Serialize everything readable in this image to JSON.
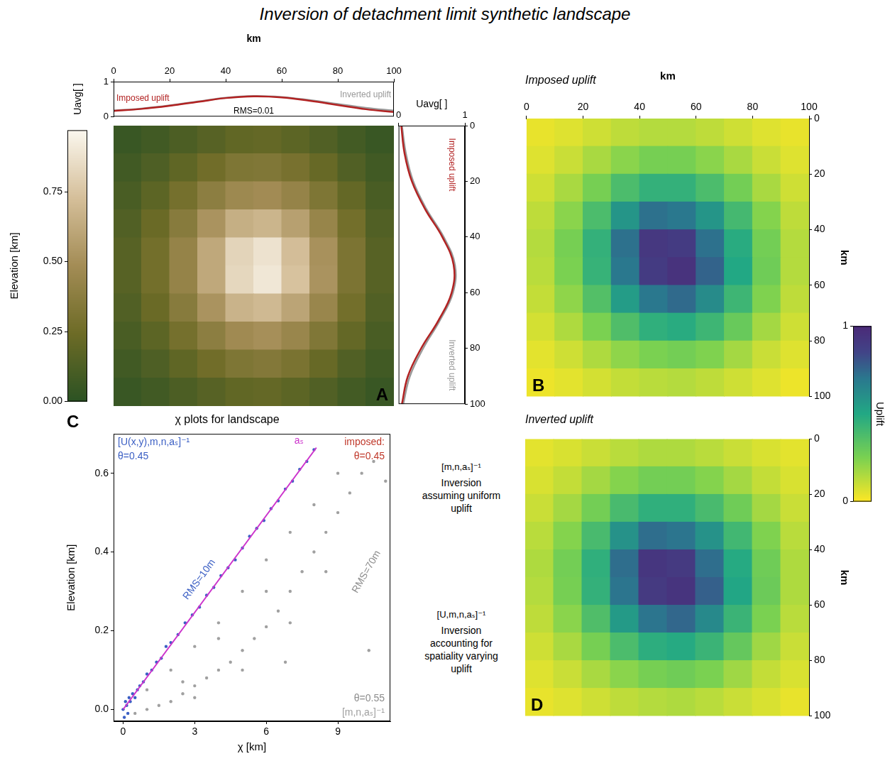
{
  "title": "Inversion of detachment limit synthetic landscape",
  "chart_data": [
    {
      "type": "heatmap",
      "panel_label": "A",
      "x": [
        5,
        15,
        25,
        35,
        45,
        55,
        65,
        75,
        85,
        95
      ],
      "y": [
        5,
        15,
        25,
        35,
        45,
        55,
        65,
        75,
        85,
        95
      ],
      "z": [
        [
          0.05,
          0.08,
          0.12,
          0.16,
          0.2,
          0.21,
          0.18,
          0.14,
          0.09,
          0.05
        ],
        [
          0.08,
          0.13,
          0.19,
          0.26,
          0.32,
          0.33,
          0.29,
          0.22,
          0.14,
          0.08
        ],
        [
          0.11,
          0.18,
          0.28,
          0.38,
          0.46,
          0.48,
          0.42,
          0.32,
          0.21,
          0.11
        ],
        [
          0.14,
          0.23,
          0.36,
          0.52,
          0.65,
          0.68,
          0.58,
          0.43,
          0.27,
          0.14
        ],
        [
          0.16,
          0.27,
          0.42,
          0.62,
          0.82,
          0.88,
          0.72,
          0.51,
          0.31,
          0.16
        ],
        [
          0.16,
          0.27,
          0.42,
          0.62,
          0.83,
          0.9,
          0.74,
          0.52,
          0.31,
          0.16
        ],
        [
          0.14,
          0.23,
          0.36,
          0.52,
          0.67,
          0.7,
          0.6,
          0.44,
          0.27,
          0.14
        ],
        [
          0.11,
          0.18,
          0.28,
          0.38,
          0.47,
          0.5,
          0.44,
          0.33,
          0.21,
          0.11
        ],
        [
          0.08,
          0.13,
          0.19,
          0.26,
          0.32,
          0.34,
          0.3,
          0.22,
          0.14,
          0.08
        ],
        [
          0.05,
          0.08,
          0.12,
          0.16,
          0.2,
          0.21,
          0.18,
          0.14,
          0.09,
          0.05
        ]
      ],
      "xlim": [
        0,
        100
      ],
      "ylim": [
        100,
        0
      ],
      "tick_labels": false,
      "grid": false,
      "colorbar": {
        "title": "Elevation [km]",
        "range": [
          0,
          0.97
        ],
        "ticks": [
          {
            "value": 0,
            "label": "0.00"
          },
          {
            "value": 0.25,
            "label": "0.25"
          },
          {
            "value": 0.5,
            "label": "0.50"
          },
          {
            "value": 0.75,
            "label": "0.75"
          }
        ]
      }
    },
    {
      "type": "line",
      "x": [
        0,
        10,
        20,
        30,
        40,
        50,
        60,
        70,
        80,
        90,
        100
      ],
      "series": [
        {
          "name": "Imposed uplift",
          "color": "#b22222",
          "values": [
            0.16,
            0.22,
            0.31,
            0.42,
            0.53,
            0.58,
            0.55,
            0.45,
            0.33,
            0.21,
            0.13
          ]
        },
        {
          "name": "Inverted uplift",
          "color": "#999999",
          "values": [
            0.17,
            0.23,
            0.32,
            0.43,
            0.54,
            0.59,
            0.56,
            0.47,
            0.36,
            0.25,
            0.17
          ]
        }
      ],
      "xlim": [
        0,
        100
      ],
      "xticks": [
        0,
        20,
        40,
        60,
        80,
        100
      ],
      "ylim": [
        0,
        1
      ],
      "yticks": [
        0,
        1
      ],
      "xlabel": "km",
      "ylabel": "Uavg[ ]",
      "annotations": [
        {
          "text": "RMS=0.01",
          "color": "#000000"
        }
      ],
      "grid": false
    },
    {
      "type": "line",
      "y": [
        0,
        10,
        20,
        30,
        40,
        50,
        60,
        70,
        80,
        90,
        100
      ],
      "series": [
        {
          "name": "Imposed uplift",
          "color": "#b22222",
          "values": [
            0.04,
            0.09,
            0.2,
            0.4,
            0.66,
            0.83,
            0.8,
            0.6,
            0.34,
            0.14,
            0.05
          ]
        },
        {
          "name": "Inverted uplift",
          "color": "#999999",
          "values": [
            0.05,
            0.11,
            0.22,
            0.42,
            0.68,
            0.85,
            0.82,
            0.62,
            0.37,
            0.17,
            0.07
          ]
        }
      ],
      "xlim": [
        0,
        1
      ],
      "xticks": [
        0,
        1
      ],
      "ylim": [
        100,
        0
      ],
      "yticks": [
        0,
        20,
        40,
        60,
        80,
        100
      ],
      "xlabel": "Uavg[ ]",
      "grid": false
    },
    {
      "type": "scatter",
      "panel_label": "C",
      "title": "χ plots for landscape",
      "xlabel": "χ [km]",
      "ylabel": "Elevation [km]",
      "xlim": [
        -0.4,
        11.2
      ],
      "ylim": [
        -0.03,
        0.7
      ],
      "xticks": [
        0,
        3,
        6,
        9
      ],
      "yticks": [
        {
          "value": 0,
          "label": "0.0"
        },
        {
          "value": 0.2,
          "label": "0.2"
        },
        {
          "value": 0.4,
          "label": "0.4"
        },
        {
          "value": 0.6,
          "label": "0.6"
        }
      ],
      "grid": false,
      "series": [
        {
          "name": "[U(x,y),m,n,aₛ]⁻¹",
          "color": "#3b5fc4",
          "marker": "circle",
          "x": [
            0,
            0.05,
            0.1,
            0.15,
            0.2,
            0.25,
            0.3,
            0.4,
            0.5,
            0.6,
            0.7,
            0.85,
            1.0,
            1.2,
            1.4,
            1.6,
            1.8,
            2.0,
            2.3,
            2.6,
            2.9,
            3.2,
            3.5,
            3.8,
            4.1,
            4.4,
            4.7,
            5.0,
            5.3,
            5.6,
            5.9,
            6.2,
            6.5,
            6.8,
            7.1,
            7.4,
            7.7,
            8.0
          ],
          "values": [
            0.0,
            -0.02,
            0.02,
            0.01,
            -0.01,
            0.03,
            0.02,
            0.04,
            0.03,
            0.05,
            0.06,
            0.07,
            0.09,
            0.1,
            0.12,
            0.13,
            0.16,
            0.17,
            0.19,
            0.22,
            0.24,
            0.26,
            0.29,
            0.31,
            0.34,
            0.36,
            0.38,
            0.41,
            0.44,
            0.46,
            0.48,
            0.51,
            0.53,
            0.56,
            0.58,
            0.61,
            0.63,
            0.66
          ]
        },
        {
          "name": "[m,n,aₛ]⁻¹",
          "color": "#a0a0a0",
          "marker": "circle",
          "x": [
            0.5,
            1.0,
            1.5,
            2.0,
            2.5,
            3.0,
            3.5,
            4.0,
            4.5,
            5.0,
            5.5,
            6.0,
            6.5,
            7.0,
            7.5,
            8.0,
            8.5,
            9.0,
            9.5,
            10.0,
            1.0,
            2.0,
            3.0,
            4.0,
            5.0,
            6.0,
            7.0,
            8.0,
            9.0,
            10.5,
            3.0,
            5.0,
            7.0,
            8.5,
            10.3,
            11.0,
            6.0,
            4.0,
            2.5,
            6.8
          ],
          "values": [
            -0.01,
            0.0,
            0.01,
            0.02,
            0.04,
            0.06,
            0.08,
            0.1,
            0.12,
            0.15,
            0.18,
            0.21,
            0.25,
            0.3,
            0.35,
            0.4,
            0.45,
            0.5,
            0.55,
            0.6,
            0.05,
            0.1,
            0.16,
            0.22,
            0.3,
            0.38,
            0.45,
            0.52,
            0.6,
            0.63,
            0.03,
            0.1,
            0.22,
            0.35,
            0.15,
            0.58,
            0.3,
            0.18,
            0.07,
            0.12
          ]
        },
        {
          "name": "aₛ",
          "color": "#cc33cc",
          "type": "line",
          "x": [
            0,
            8.1
          ],
          "values": [
            0,
            0.665
          ]
        }
      ],
      "annotations": [
        {
          "text": "θ=0.45",
          "color": "#3b5fc4"
        },
        {
          "text": "imposed:",
          "color": "#c0392b"
        },
        {
          "text": "θ=0.45",
          "color": "#c0392b"
        },
        {
          "text": "RMS=10m",
          "color": "#3b5fc4"
        },
        {
          "text": "RMS=70m",
          "color": "#8c8c8c"
        },
        {
          "text": "θ=0.55",
          "color": "#8c8c8c"
        }
      ]
    },
    {
      "type": "heatmap",
      "panel_label": "B",
      "title": "Imposed uplift",
      "x": [
        5,
        15,
        25,
        35,
        45,
        55,
        65,
        75,
        85,
        95
      ],
      "y": [
        5,
        15,
        25,
        35,
        45,
        55,
        65,
        75,
        85,
        95
      ],
      "z": [
        [
          0.04,
          0.06,
          0.09,
          0.12,
          0.14,
          0.14,
          0.12,
          0.09,
          0.06,
          0.04
        ],
        [
          0.06,
          0.1,
          0.16,
          0.22,
          0.26,
          0.26,
          0.22,
          0.16,
          0.1,
          0.06
        ],
        [
          0.09,
          0.16,
          0.26,
          0.38,
          0.45,
          0.45,
          0.38,
          0.27,
          0.16,
          0.09
        ],
        [
          0.12,
          0.22,
          0.38,
          0.58,
          0.72,
          0.7,
          0.58,
          0.4,
          0.23,
          0.12
        ],
        [
          0.14,
          0.26,
          0.45,
          0.72,
          0.92,
          0.9,
          0.72,
          0.48,
          0.27,
          0.14
        ],
        [
          0.13,
          0.25,
          0.44,
          0.7,
          0.9,
          0.95,
          0.76,
          0.5,
          0.28,
          0.14
        ],
        [
          0.11,
          0.21,
          0.36,
          0.55,
          0.7,
          0.74,
          0.62,
          0.42,
          0.24,
          0.12
        ],
        [
          0.08,
          0.15,
          0.25,
          0.37,
          0.46,
          0.48,
          0.42,
          0.3,
          0.17,
          0.09
        ],
        [
          0.05,
          0.09,
          0.15,
          0.21,
          0.25,
          0.27,
          0.24,
          0.17,
          0.1,
          0.06
        ],
        [
          0.03,
          0.05,
          0.08,
          0.11,
          0.13,
          0.14,
          0.12,
          0.09,
          0.06,
          0.03
        ]
      ],
      "xlim": [
        0,
        100
      ],
      "xticks": [
        0,
        20,
        40,
        60,
        80,
        100
      ],
      "ylim": [
        100,
        0
      ],
      "yticks": [
        0,
        20,
        40,
        60,
        80,
        100
      ],
      "xlabel": "km",
      "ylabel": "km",
      "grid": false,
      "colorbar": {
        "title": "Uplift",
        "range": [
          0,
          1
        ],
        "ticks": [
          0,
          1
        ]
      }
    },
    {
      "type": "heatmap",
      "panel_label": "D",
      "title": "Inverted uplift",
      "x": [
        5,
        15,
        25,
        35,
        45,
        55,
        65,
        75,
        85,
        95
      ],
      "y": [
        5,
        15,
        25,
        35,
        45,
        55,
        65,
        75,
        85,
        95
      ],
      "z": [
        [
          0.05,
          0.07,
          0.1,
          0.13,
          0.15,
          0.15,
          0.13,
          0.1,
          0.07,
          0.05
        ],
        [
          0.07,
          0.11,
          0.17,
          0.23,
          0.27,
          0.27,
          0.23,
          0.17,
          0.11,
          0.07
        ],
        [
          0.1,
          0.17,
          0.27,
          0.39,
          0.46,
          0.46,
          0.39,
          0.28,
          0.17,
          0.1
        ],
        [
          0.13,
          0.23,
          0.39,
          0.59,
          0.73,
          0.71,
          0.59,
          0.41,
          0.24,
          0.13
        ],
        [
          0.15,
          0.27,
          0.46,
          0.73,
          0.93,
          0.91,
          0.73,
          0.49,
          0.28,
          0.15
        ],
        [
          0.14,
          0.26,
          0.45,
          0.71,
          0.91,
          0.94,
          0.77,
          0.51,
          0.29,
          0.15
        ],
        [
          0.12,
          0.22,
          0.37,
          0.56,
          0.71,
          0.75,
          0.63,
          0.43,
          0.25,
          0.13
        ],
        [
          0.09,
          0.16,
          0.26,
          0.38,
          0.47,
          0.49,
          0.43,
          0.31,
          0.18,
          0.1
        ],
        [
          0.06,
          0.1,
          0.16,
          0.22,
          0.26,
          0.28,
          0.25,
          0.18,
          0.11,
          0.07
        ],
        [
          0.04,
          0.06,
          0.09,
          0.12,
          0.14,
          0.15,
          0.13,
          0.1,
          0.07,
          0.04
        ]
      ],
      "xlim": [
        0,
        100
      ],
      "ylim": [
        100,
        0
      ],
      "yticks": [
        0,
        20,
        40,
        60,
        80,
        100
      ],
      "ylabel": "km",
      "tick_labels": "y",
      "grid": false
    }
  ],
  "side_notes": [
    {
      "label": "[m,n,aₛ]⁻¹",
      "text": "Inversion assuming uniform uplift"
    },
    {
      "label": "[U,m,n,aₛ]⁻¹",
      "text": "Inversion accounting for spatiality varying uplift"
    }
  ]
}
